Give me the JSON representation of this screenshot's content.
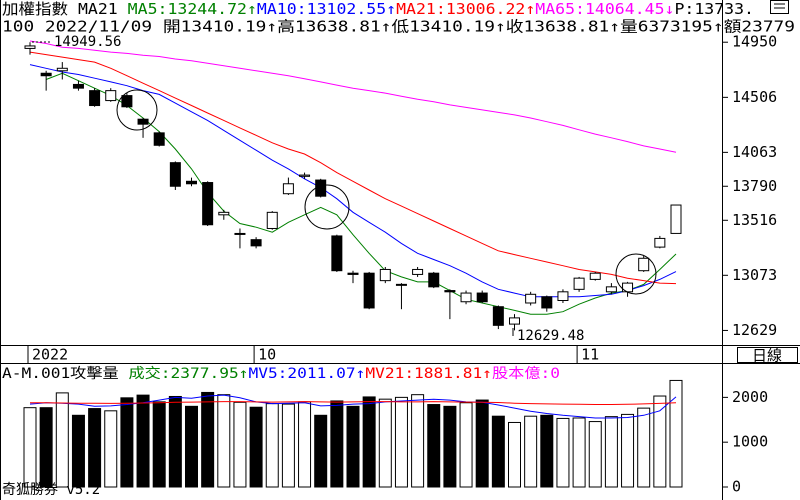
{
  "footer": "奇狐勝券 v5.2",
  "chart_data": [
    {
      "type": "candlestick",
      "header": [
        {
          "text": "加權指數 MA21 ",
          "color": "#000000"
        },
        {
          "text": "MA5:13244.72↑",
          "color": "#008000"
        },
        {
          "text": "MA10:13102.55↑",
          "color": "#0000ff"
        },
        {
          "text": "MA21:13006.22↑",
          "color": "#ff0000"
        },
        {
          "text": "MA65:14064.45↓",
          "color": "#ff00ff"
        },
        {
          "text": "P:13733.",
          "color": "#000000"
        }
      ],
      "header2": "100 2022/11/09 開13410.19↑高13638.81↑低13410.19↑收13638.81↑量6373195↑額23779",
      "period": "日線",
      "categories": [
        "2022",
        null,
        null,
        null,
        null,
        null,
        null,
        null,
        null,
        null,
        null,
        null,
        null,
        null,
        "10",
        null,
        null,
        null,
        null,
        null,
        null,
        null,
        null,
        null,
        null,
        null,
        null,
        null,
        null,
        null,
        null,
        null,
        null,
        null,
        "11",
        null,
        null,
        null,
        null,
        null,
        null
      ],
      "open": [
        14900,
        14700,
        14720,
        14610,
        14560,
        14480,
        14520,
        14330,
        14220,
        13980,
        13830,
        13820,
        13560,
        13410,
        13360,
        13450,
        13730,
        13870,
        13840,
        13390,
        13090,
        13090,
        13030,
        13000,
        13080,
        13090,
        12950,
        12860,
        12930,
        12820,
        12680,
        12850,
        12900,
        12870,
        12960,
        13040,
        12940,
        12940,
        13110,
        13300,
        13410.19
      ],
      "high": [
        14949.56,
        14720,
        14790,
        14640,
        14580,
        14580,
        14540,
        14340,
        14230,
        13990,
        13860,
        13830,
        13600,
        13450,
        13380,
        13590,
        13860,
        13900,
        13850,
        13400,
        13110,
        13100,
        13140,
        13010,
        13140,
        13100,
        12960,
        12950,
        12950,
        12830,
        12760,
        12940,
        12910,
        12960,
        13060,
        13100,
        13010,
        13020,
        13230,
        13390,
        13638.81
      ],
      "low": [
        14850,
        14560,
        14650,
        14560,
        14430,
        14470,
        14420,
        14180,
        14110,
        13760,
        13790,
        13470,
        13520,
        13290,
        13290,
        13440,
        13720,
        13850,
        13700,
        13100,
        13010,
        12800,
        13010,
        12800,
        13060,
        12970,
        12720,
        12840,
        12850,
        12640,
        12629.48,
        12830,
        12780,
        12850,
        12940,
        13030,
        12920,
        12900,
        13100,
        13290,
        13410.19
      ],
      "close": [
        14920,
        14680,
        14740,
        14580,
        14440,
        14560,
        14430,
        14290,
        14120,
        13790,
        13810,
        13480,
        13580,
        13410,
        13310,
        13580,
        13810,
        13880,
        13710,
        13110,
        13080,
        12810,
        13120,
        13000,
        13120,
        12980,
        12940,
        12930,
        12860,
        12670,
        12730,
        12920,
        12810,
        12940,
        13050,
        13090,
        12980,
        13010,
        13210,
        13370,
        13638.81
      ],
      "series": [
        {
          "color": "#008000",
          "values": [
            null,
            14650,
            14700,
            14640,
            14580,
            14520,
            14440,
            14340,
            14230,
            14090,
            13930,
            13740,
            13590,
            13490,
            13460,
            13420,
            13500,
            13560,
            13620,
            13560,
            13400,
            13250,
            13110,
            13060,
            13020,
            13020,
            12950,
            12880,
            12850,
            12820,
            12790,
            12760,
            12760,
            12780,
            12840,
            12890,
            12930,
            12950,
            13000,
            13120,
            13244.72
          ]
        },
        {
          "color": "#0000ff",
          "values": [
            14770,
            14740,
            14710,
            14690,
            14660,
            14630,
            14600,
            14560,
            14530,
            14460,
            14390,
            14320,
            14240,
            14160,
            14080,
            14000,
            13930,
            13850,
            13780,
            13690,
            13580,
            13500,
            13420,
            13330,
            13250,
            13200,
            13150,
            13090,
            13020,
            12960,
            12930,
            12900,
            12900,
            12900,
            12900,
            12910,
            12920,
            12950,
            12990,
            13040,
            13102.55
          ]
        },
        {
          "color": "#ff0000",
          "values": [
            14870,
            14850,
            14830,
            14810,
            14790,
            14740,
            14680,
            14620,
            14560,
            14500,
            14440,
            14380,
            14320,
            14260,
            14200,
            14140,
            14090,
            14050,
            13980,
            13900,
            13830,
            13760,
            13690,
            13630,
            13570,
            13510,
            13450,
            13390,
            13330,
            13270,
            13240,
            13210,
            13180,
            13150,
            13120,
            13100,
            13080,
            13050,
            13030,
            13010,
            13006.22
          ]
        },
        {
          "color": "#ff00ff",
          "values": [
            14960,
            14940,
            14910,
            14900,
            14885,
            14870,
            14860,
            14845,
            14835,
            14815,
            14800,
            14780,
            14760,
            14740,
            14720,
            14700,
            14680,
            14655,
            14630,
            14605,
            14580,
            14560,
            14540,
            14515,
            14490,
            14470,
            14445,
            14425,
            14405,
            14385,
            14365,
            14340,
            14310,
            14280,
            14245,
            14210,
            14180,
            14150,
            14115,
            14090,
            14064.45
          ]
        }
      ],
      "annotations": [
        "14949.56",
        "12629.48"
      ],
      "ylim": [
        12560,
        15000
      ],
      "yticks": [
        14950,
        14506,
        14063,
        13790,
        13516,
        13073,
        12629
      ]
    },
    {
      "type": "bar",
      "header": [
        {
          "text": "A-M.001攻擊量 ",
          "color": "#000000"
        },
        {
          "text": "成交:2377.95↑",
          "color": "#008000"
        },
        {
          "text": "MV5:2011.07↑",
          "color": "#0000ff"
        },
        {
          "text": "MV21:1881.81↑",
          "color": "#ff0000"
        },
        {
          "text": "股本億:0",
          "color": "#ff00ff"
        }
      ],
      "values": [
        1770,
        1770,
        2100,
        1600,
        1750,
        1700,
        1990,
        2050,
        1900,
        2020,
        1800,
        2110,
        2060,
        1890,
        1780,
        1860,
        1850,
        1900,
        1600,
        1920,
        1800,
        2010,
        1960,
        2000,
        2060,
        1840,
        1800,
        1880,
        1940,
        1580,
        1440,
        1580,
        1600,
        1530,
        1540,
        1460,
        1570,
        1620,
        1760,
        2030,
        2377.95
      ],
      "series": [
        {
          "color": "#0000ff",
          "values": [
            1850,
            1880,
            1870,
            1850,
            1800,
            1810,
            1840,
            1880,
            1940,
            2000,
            1980,
            2030,
            2050,
            1990,
            1900,
            1860,
            1870,
            1880,
            1810,
            1820,
            1850,
            1860,
            1900,
            1920,
            1940,
            1960,
            1940,
            1900,
            1890,
            1830,
            1760,
            1690,
            1640,
            1600,
            1570,
            1540,
            1540,
            1550,
            1600,
            1700,
            2011.07
          ]
        },
        {
          "color": "#ff0000",
          "values": [
            1880,
            1880,
            1875,
            1870,
            1870,
            1865,
            1870,
            1875,
            1880,
            1890,
            1895,
            1900,
            1905,
            1905,
            1900,
            1895,
            1900,
            1905,
            1900,
            1895,
            1900,
            1905,
            1905,
            1900,
            1900,
            1905,
            1900,
            1895,
            1890,
            1885,
            1870,
            1860,
            1855,
            1850,
            1845,
            1840,
            1840,
            1845,
            1855,
            1865,
            1881.81
          ]
        }
      ],
      "ylim": [
        0,
        2700
      ],
      "yticks": [
        0,
        1000,
        2000
      ]
    }
  ]
}
